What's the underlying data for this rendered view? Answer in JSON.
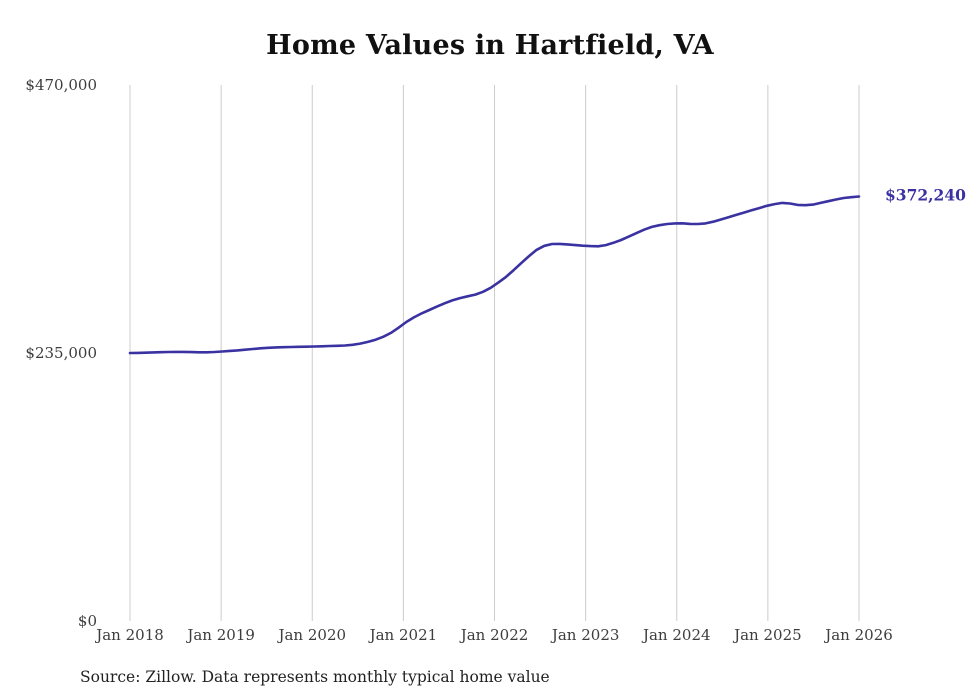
{
  "chart_data": {
    "type": "line",
    "title": "Home Values in Hartfield, VA",
    "source": "Source: Zillow. Data represents monthly typical home value",
    "series_name": "Monthly typical home value",
    "x_tick_labels": [
      "Jan 2018",
      "Jan 2019",
      "Jan 2020",
      "Jan 2021",
      "Jan 2022",
      "Jan 2023",
      "Jan 2024",
      "Jan 2025",
      "Jan 2026"
    ],
    "y_ticks": [
      {
        "value": 0,
        "label": "$0"
      },
      {
        "value": 235000,
        "label": "$235,000"
      },
      {
        "value": 470000,
        "label": "$470,000"
      }
    ],
    "ylim": [
      0,
      470000
    ],
    "grid": "vertical-only",
    "legend": "none",
    "end_label": "$372,240",
    "end_value": 372240,
    "line_color": "#3b32a2",
    "grid_color": "#cccccc",
    "tick_text_color": "#3d3d3d",
    "values": [
      235000,
      235100,
      235300,
      235500,
      235700,
      235900,
      236000,
      236000,
      235800,
      235600,
      235600,
      235900,
      236300,
      236800,
      237300,
      237900,
      238500,
      239100,
      239600,
      239900,
      240100,
      240300,
      240400,
      240500,
      240700,
      240900,
      241100,
      241300,
      241600,
      242200,
      243200,
      244700,
      246700,
      249200,
      252600,
      257200,
      262200,
      266200,
      269700,
      272700,
      275700,
      278600,
      281100,
      283100,
      284700,
      286200,
      288700,
      292200,
      296700,
      301700,
      307700,
      314000,
      320000,
      325500,
      329000,
      330600,
      330700,
      330200,
      329600,
      329100,
      328700,
      328600,
      329600,
      331600,
      334100,
      337100,
      340100,
      343100,
      345600,
      347100,
      348100,
      348600,
      348700,
      348200,
      348100,
      348600,
      350100,
      352100,
      354100,
      356100,
      358100,
      360100,
      362100,
      364100,
      365600,
      366600,
      366100,
      364900,
      364600,
      365100,
      366600,
      368100,
      369600,
      370900,
      371600,
      372240
    ]
  }
}
